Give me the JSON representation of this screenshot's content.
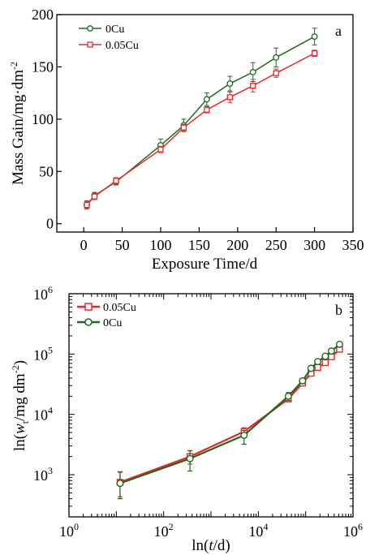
{
  "chart_data": [
    {
      "type": "line",
      "panel_label": "a",
      "xlabel": "Exposure Time/d",
      "ylabel": "Mass Gain/mg·dm",
      "ylabel_sup": "-2",
      "xlim": [
        -35,
        350
      ],
      "ylim": [
        -8,
        200
      ],
      "xticks": [
        0,
        50,
        100,
        150,
        200,
        250,
        300,
        350
      ],
      "yticks": [
        0,
        50,
        100,
        150,
        200
      ],
      "x": [
        4,
        14,
        42,
        100,
        130,
        160,
        190,
        220,
        250,
        300
      ],
      "legend_position": "top-left",
      "series": [
        {
          "name": "0Cu",
          "color": "#1b6b1b",
          "marker": "circle",
          "values": [
            18,
            27,
            40,
            75,
            94,
            119,
            134,
            145,
            159,
            179
          ],
          "errors": [
            4,
            3,
            3,
            6,
            6,
            6,
            7,
            9,
            9,
            8
          ]
        },
        {
          "name": "0.05Cu",
          "color": "#e8282b",
          "marker": "square",
          "values": [
            18,
            26,
            41,
            71,
            92,
            109,
            121,
            132,
            144,
            163
          ],
          "errors": [
            3,
            3,
            3,
            3,
            3,
            3,
            5,
            6,
            4,
            3
          ]
        }
      ]
    },
    {
      "type": "line",
      "panel_label": "b",
      "xlabel_prefix": "ln(",
      "xlabel_var": "t",
      "xlabel_suffix": "/d)",
      "ylabel_prefix": "ln(",
      "ylabel_var": "w",
      "ylabel_sub": "t",
      "ylabel_mid": "/mg dm",
      "ylabel_sup": "-2",
      "ylabel_end": ")",
      "xscale": "log",
      "yscale": "log",
      "xlim": [
        1,
        1000000
      ],
      "ylim": [
        200,
        1000000
      ],
      "xtick_exponents": [
        "0",
        "2",
        "4",
        "6"
      ],
      "ytick_exponents": [
        "3",
        "4",
        "5",
        "6"
      ],
      "x": [
        12,
        360,
        5000,
        43000,
        86000,
        130000,
        180000,
        260000,
        350000,
        520000
      ],
      "legend_position": "top-left",
      "series": [
        {
          "name": "0.05Cu",
          "color": "#e8282b",
          "marker": "square",
          "values": [
            750,
            2000,
            5200,
            18000,
            33000,
            48000,
            60000,
            72000,
            90000,
            120000
          ],
          "err_low": [
            320,
            500,
            800,
            2000,
            2500,
            3000,
            3000,
            3000,
            4000,
            5000
          ],
          "err_high": [
            350,
            500,
            800,
            2000,
            2500,
            3000,
            3000,
            3000,
            4000,
            5000
          ]
        },
        {
          "name": "0Cu",
          "color": "#1b6b1b",
          "marker": "circle",
          "values": [
            720,
            1850,
            4500,
            20000,
            36000,
            58000,
            75000,
            92000,
            112000,
            145000
          ],
          "err_low": [
            320,
            700,
            1300,
            3000,
            3500,
            5000,
            6000,
            7000,
            8000,
            10000
          ],
          "err_high": [
            400,
            650,
            900,
            3000,
            3500,
            5000,
            6000,
            7000,
            8000,
            10000
          ]
        }
      ]
    }
  ]
}
